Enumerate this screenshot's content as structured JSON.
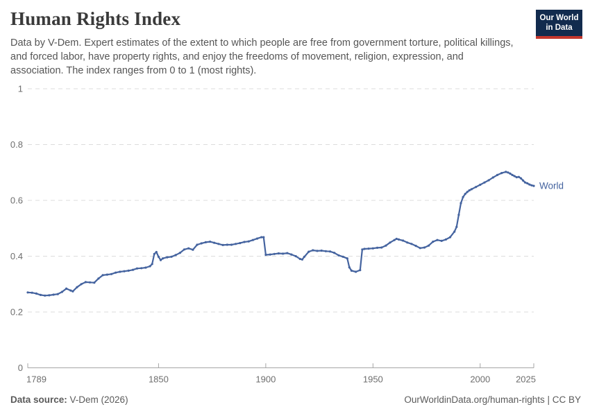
{
  "header": {
    "title": "Human Rights Index",
    "subtitle": "Data by V-Dem. Expert estimates of the extent to which people are free from government torture, political killings, and forced labor, have property rights, and enjoy the freedoms of movement, religion, expression, and association. The index ranges from 0 to 1 (most rights).",
    "logo": {
      "line1": "Our World",
      "line2": "in Data",
      "bg_color": "#122b4e",
      "bar_color": "#c4372d"
    }
  },
  "chart_data": {
    "type": "line",
    "title": "Human Rights Index",
    "xlabel": "",
    "ylabel": "",
    "xlim": [
      1789,
      2025
    ],
    "ylim": [
      0,
      1
    ],
    "x_ticks": [
      1789,
      1850,
      1900,
      1950,
      2000,
      2025
    ],
    "y_ticks": [
      0,
      0.2,
      0.4,
      0.6,
      0.8,
      1
    ],
    "grid": "horizontal-dashed",
    "legend_position": "end-of-line-label",
    "colors": {
      "grid": "#dcdcdc",
      "axis": "#a5a5a5",
      "tick_text": "#6e6e6e"
    },
    "series": [
      {
        "name": "World",
        "color": "#44639f",
        "points": [
          [
            1789,
            0.27
          ],
          [
            1791,
            0.269
          ],
          [
            1793,
            0.266
          ],
          [
            1795,
            0.261
          ],
          [
            1797,
            0.259
          ],
          [
            1799,
            0.26
          ],
          [
            1801,
            0.262
          ],
          [
            1803,
            0.264
          ],
          [
            1805,
            0.272
          ],
          [
            1807,
            0.284
          ],
          [
            1809,
            0.277
          ],
          [
            1810,
            0.274
          ],
          [
            1812,
            0.289
          ],
          [
            1814,
            0.3
          ],
          [
            1816,
            0.307
          ],
          [
            1818,
            0.306
          ],
          [
            1820,
            0.305
          ],
          [
            1822,
            0.32
          ],
          [
            1824,
            0.332
          ],
          [
            1826,
            0.334
          ],
          [
            1828,
            0.336
          ],
          [
            1830,
            0.341
          ],
          [
            1832,
            0.344
          ],
          [
            1834,
            0.346
          ],
          [
            1836,
            0.348
          ],
          [
            1838,
            0.351
          ],
          [
            1840,
            0.356
          ],
          [
            1842,
            0.357
          ],
          [
            1844,
            0.359
          ],
          [
            1846,
            0.364
          ],
          [
            1847,
            0.372
          ],
          [
            1848,
            0.408
          ],
          [
            1849,
            0.415
          ],
          [
            1850,
            0.398
          ],
          [
            1851,
            0.386
          ],
          [
            1852,
            0.392
          ],
          [
            1854,
            0.396
          ],
          [
            1856,
            0.398
          ],
          [
            1858,
            0.404
          ],
          [
            1860,
            0.412
          ],
          [
            1862,
            0.424
          ],
          [
            1864,
            0.428
          ],
          [
            1866,
            0.423
          ],
          [
            1868,
            0.441
          ],
          [
            1870,
            0.446
          ],
          [
            1872,
            0.45
          ],
          [
            1874,
            0.452
          ],
          [
            1876,
            0.448
          ],
          [
            1878,
            0.444
          ],
          [
            1880,
            0.44
          ],
          [
            1882,
            0.441
          ],
          [
            1884,
            0.441
          ],
          [
            1886,
            0.444
          ],
          [
            1888,
            0.447
          ],
          [
            1890,
            0.451
          ],
          [
            1892,
            0.453
          ],
          [
            1894,
            0.458
          ],
          [
            1896,
            0.463
          ],
          [
            1898,
            0.468
          ],
          [
            1899,
            0.468
          ],
          [
            1900,
            0.405
          ],
          [
            1902,
            0.406
          ],
          [
            1904,
            0.408
          ],
          [
            1906,
            0.41
          ],
          [
            1908,
            0.409
          ],
          [
            1910,
            0.411
          ],
          [
            1912,
            0.406
          ],
          [
            1914,
            0.4
          ],
          [
            1916,
            0.39
          ],
          [
            1917,
            0.388
          ],
          [
            1918,
            0.398
          ],
          [
            1920,
            0.416
          ],
          [
            1922,
            0.421
          ],
          [
            1924,
            0.419
          ],
          [
            1926,
            0.42
          ],
          [
            1928,
            0.418
          ],
          [
            1930,
            0.417
          ],
          [
            1932,
            0.412
          ],
          [
            1934,
            0.403
          ],
          [
            1936,
            0.398
          ],
          [
            1938,
            0.392
          ],
          [
            1939,
            0.36
          ],
          [
            1940,
            0.348
          ],
          [
            1942,
            0.344
          ],
          [
            1944,
            0.35
          ],
          [
            1945,
            0.424
          ],
          [
            1946,
            0.426
          ],
          [
            1948,
            0.427
          ],
          [
            1950,
            0.428
          ],
          [
            1952,
            0.43
          ],
          [
            1954,
            0.431
          ],
          [
            1956,
            0.438
          ],
          [
            1958,
            0.449
          ],
          [
            1960,
            0.458
          ],
          [
            1961,
            0.462
          ],
          [
            1962,
            0.46
          ],
          [
            1964,
            0.456
          ],
          [
            1966,
            0.449
          ],
          [
            1968,
            0.444
          ],
          [
            1970,
            0.437
          ],
          [
            1972,
            0.429
          ],
          [
            1974,
            0.431
          ],
          [
            1976,
            0.438
          ],
          [
            1978,
            0.452
          ],
          [
            1980,
            0.458
          ],
          [
            1982,
            0.455
          ],
          [
            1984,
            0.46
          ],
          [
            1986,
            0.468
          ],
          [
            1988,
            0.488
          ],
          [
            1989,
            0.505
          ],
          [
            1990,
            0.548
          ],
          [
            1991,
            0.59
          ],
          [
            1992,
            0.612
          ],
          [
            1993,
            0.623
          ],
          [
            1994,
            0.63
          ],
          [
            1995,
            0.636
          ],
          [
            1996,
            0.64
          ],
          [
            1998,
            0.648
          ],
          [
            2000,
            0.656
          ],
          [
            2002,
            0.664
          ],
          [
            2004,
            0.672
          ],
          [
            2006,
            0.682
          ],
          [
            2008,
            0.691
          ],
          [
            2010,
            0.698
          ],
          [
            2012,
            0.702
          ],
          [
            2013,
            0.7
          ],
          [
            2014,
            0.696
          ],
          [
            2015,
            0.691
          ],
          [
            2016,
            0.687
          ],
          [
            2017,
            0.683
          ],
          [
            2018,
            0.684
          ],
          [
            2019,
            0.679
          ],
          [
            2020,
            0.671
          ],
          [
            2021,
            0.664
          ],
          [
            2022,
            0.661
          ],
          [
            2023,
            0.657
          ],
          [
            2024,
            0.654
          ],
          [
            2025,
            0.652
          ]
        ]
      }
    ]
  },
  "footer": {
    "source_label": "Data source:",
    "source_value": " V-Dem (2026)",
    "credit": "OurWorldinData.org/human-rights | CC BY"
  }
}
